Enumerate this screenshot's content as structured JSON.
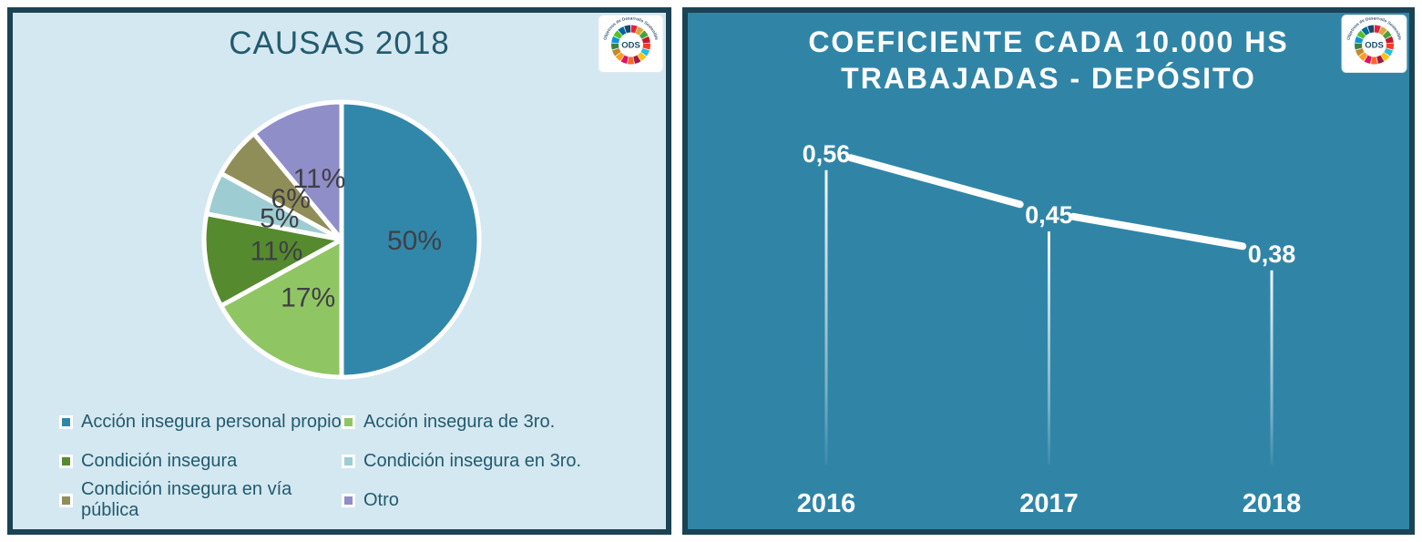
{
  "page": {
    "background": "#FFFFFF"
  },
  "left_panel": {
    "background": "#D4E8F1",
    "border_color": "#1B4354",
    "title_color": "#235A6E"
  },
  "right_panel": {
    "background": "#3085A7",
    "border_color": "#1B4354",
    "title_color": "#FFFFFF"
  },
  "ods_logo": {
    "center_label": "ODS",
    "ring_text": "Objetivos de Desarrollo Sostenible",
    "wheel_colors": [
      "#E5243B",
      "#DDA63A",
      "#4C9F38",
      "#C5192D",
      "#FF3A21",
      "#26BDE2",
      "#FCC30B",
      "#A21942",
      "#FD6925",
      "#DD1367",
      "#FD9D24",
      "#BF8B2E",
      "#3F7E44",
      "#0A97D9",
      "#56C02B",
      "#00689D",
      "#19486A"
    ]
  },
  "chart_data": [
    {
      "type": "pie",
      "title": "CAUSAS 2018",
      "labels": [
        "Acción insegura personal propio",
        "Acción insegura de 3ro.",
        "Condición insegura",
        "Condición insegura en 3ro.",
        "Condición insegura en vía pública",
        "Otro"
      ],
      "values": [
        50,
        17,
        11,
        5,
        6,
        11
      ],
      "data_labels": [
        "50%",
        "17%",
        "11%",
        "5%",
        "6%",
        "11%"
      ],
      "colors": [
        "#3187A9",
        "#8FC663",
        "#568A2E",
        "#9DCDD2",
        "#908E58",
        "#8F8EC8"
      ],
      "unit": "%",
      "start_angle_deg": 0,
      "direction": "clockwise",
      "slice_border_color": "#FFFFFF",
      "label_color": "#3F3F46",
      "legend_position": "bottom two-column"
    },
    {
      "type": "line",
      "title": "COEFICIENTE CADA 10.000 HS TRABAJADAS - DEPÓSITO",
      "title_lines": [
        "COEFICIENTE CADA 10.000 HS",
        "TRABAJADAS - DEPÓSITO"
      ],
      "categories": [
        "2016",
        "2017",
        "2018"
      ],
      "values": [
        0.56,
        0.45,
        0.38
      ],
      "value_labels": [
        "0,56",
        "0,45",
        "0,38"
      ],
      "line_color": "#FFFFFF",
      "label_color": "#FFFFFF",
      "drop_lines": true,
      "ylim": [
        0,
        0.62
      ],
      "grid": false,
      "legend": false
    }
  ]
}
